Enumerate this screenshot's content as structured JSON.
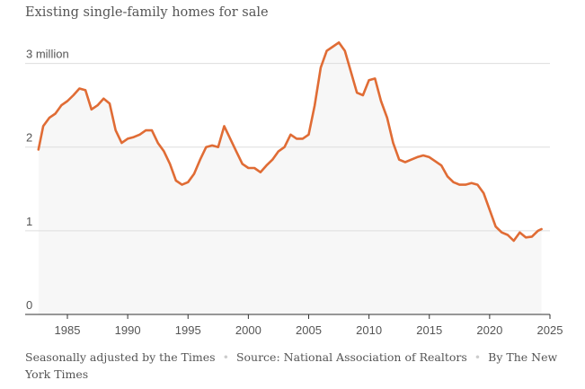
{
  "chart_data": {
    "type": "area",
    "title": "Existing single-family homes for sale",
    "ylabel": "",
    "xlabel": "",
    "y_ticks": [
      {
        "value": 0,
        "label": "0"
      },
      {
        "value": 1,
        "label": "1"
      },
      {
        "value": 2,
        "label": "2"
      },
      {
        "value": 3,
        "label": "3 million"
      }
    ],
    "x_ticks": [
      "1985",
      "1990",
      "1995",
      "2000",
      "2005",
      "2010",
      "2015",
      "2020",
      "2025"
    ],
    "xlim": [
      1981.5,
      2025
    ],
    "ylim": [
      0,
      3.35
    ],
    "grid": true,
    "units": "millions",
    "line_color": "#e06c35",
    "fill_color": "#f7f7f7",
    "series": [
      {
        "x": [
          1982.6,
          1983.0,
          1983.5,
          1984.0,
          1984.5,
          1985.0,
          1985.5,
          1986.0,
          1986.5,
          1987.0,
          1987.5,
          1988.0,
          1988.5,
          1989.0,
          1989.5,
          1990.0,
          1990.5,
          1991.0,
          1991.5,
          1992.0,
          1992.5,
          1993.0,
          1993.5,
          1994.0,
          1994.5,
          1995.0,
          1995.5,
          1996.0,
          1996.5,
          1997.0,
          1997.5,
          1998.0,
          1998.5,
          1999.0,
          1999.5,
          2000.0,
          2000.5,
          2001.0,
          2001.5,
          2002.0,
          2002.5,
          2003.0,
          2003.5,
          2004.0,
          2004.5,
          2005.0,
          2005.5,
          2006.0,
          2006.5,
          2007.0,
          2007.5,
          2008.0,
          2008.5,
          2009.0,
          2009.5,
          2010.0,
          2010.5,
          2011.0,
          2011.5,
          2012.0,
          2012.5,
          2013.0,
          2013.5,
          2014.0,
          2014.5,
          2015.0,
          2015.5,
          2016.0,
          2016.5,
          2017.0,
          2017.5,
          2018.0,
          2018.5,
          2019.0,
          2019.5,
          2020.0,
          2020.5,
          2021.0,
          2021.5,
          2022.0,
          2022.5,
          2023.0,
          2023.5,
          2024.0,
          2024.3
        ],
        "values": [
          1.97,
          2.25,
          2.35,
          2.4,
          2.5,
          2.55,
          2.62,
          2.7,
          2.68,
          2.45,
          2.5,
          2.58,
          2.52,
          2.2,
          2.05,
          2.1,
          2.12,
          2.15,
          2.2,
          2.2,
          2.05,
          1.95,
          1.8,
          1.6,
          1.55,
          1.58,
          1.68,
          1.85,
          2.0,
          2.02,
          2.0,
          2.25,
          2.1,
          1.95,
          1.8,
          1.75,
          1.75,
          1.7,
          1.78,
          1.85,
          1.95,
          2.0,
          2.15,
          2.1,
          2.1,
          2.15,
          2.5,
          2.95,
          3.15,
          3.2,
          3.25,
          3.15,
          2.9,
          2.65,
          2.62,
          2.8,
          2.82,
          2.55,
          2.35,
          2.05,
          1.85,
          1.82,
          1.85,
          1.88,
          1.9,
          1.88,
          1.83,
          1.78,
          1.65,
          1.58,
          1.55,
          1.55,
          1.57,
          1.55,
          1.45,
          1.25,
          1.05,
          0.98,
          0.95,
          0.88,
          0.98,
          0.92,
          0.93,
          1.0,
          1.02
        ]
      }
    ]
  },
  "footer": {
    "note": "Seasonally adjusted by the Times",
    "source": "Source: National Association of Realtors",
    "byline": "By The New York Times",
    "separator": "•"
  }
}
